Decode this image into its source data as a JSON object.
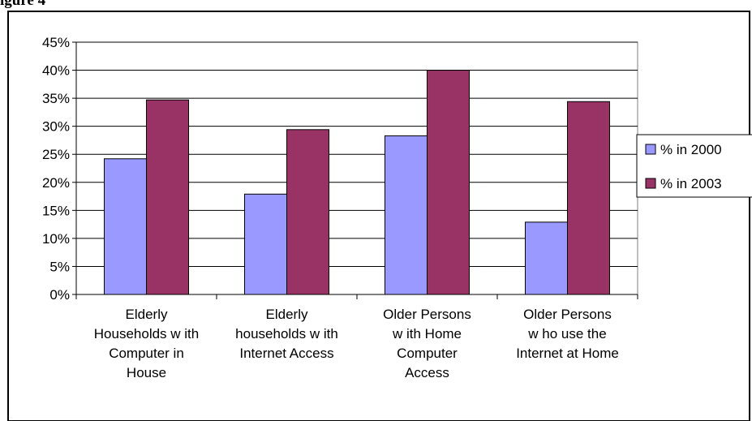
{
  "caption_fragment": "igure 4",
  "colors": {
    "series_2000": "#9999ff",
    "series_2003": "#993366",
    "plot_area": "#ffffff",
    "grid": "#000000"
  },
  "chart_data": {
    "type": "bar",
    "title": "",
    "xlabel": "",
    "ylabel": "",
    "categories": [
      [
        "Elderly",
        "Households w ith",
        "Computer in",
        "House"
      ],
      [
        "Elderly",
        "households w ith",
        "Internet Access"
      ],
      [
        "Older Persons",
        "w ith Home",
        "Computer",
        "Access"
      ],
      [
        "Older Persons",
        "w ho use the",
        "Internet at Home"
      ]
    ],
    "series": [
      {
        "name": "% in 2000",
        "values": [
          24.2,
          17.9,
          28.3,
          12.9
        ]
      },
      {
        "name": "% in 2003",
        "values": [
          34.7,
          29.4,
          40.0,
          34.4
        ]
      }
    ],
    "ylim": [
      0,
      45
    ],
    "yticks": [
      "0%",
      "5%",
      "10%",
      "15%",
      "20%",
      "25%",
      "30%",
      "35%",
      "40%",
      "45%"
    ],
    "ytick_values": [
      0,
      5,
      10,
      15,
      20,
      25,
      30,
      35,
      40,
      45
    ],
    "grid": true,
    "legend_position": "right"
  }
}
